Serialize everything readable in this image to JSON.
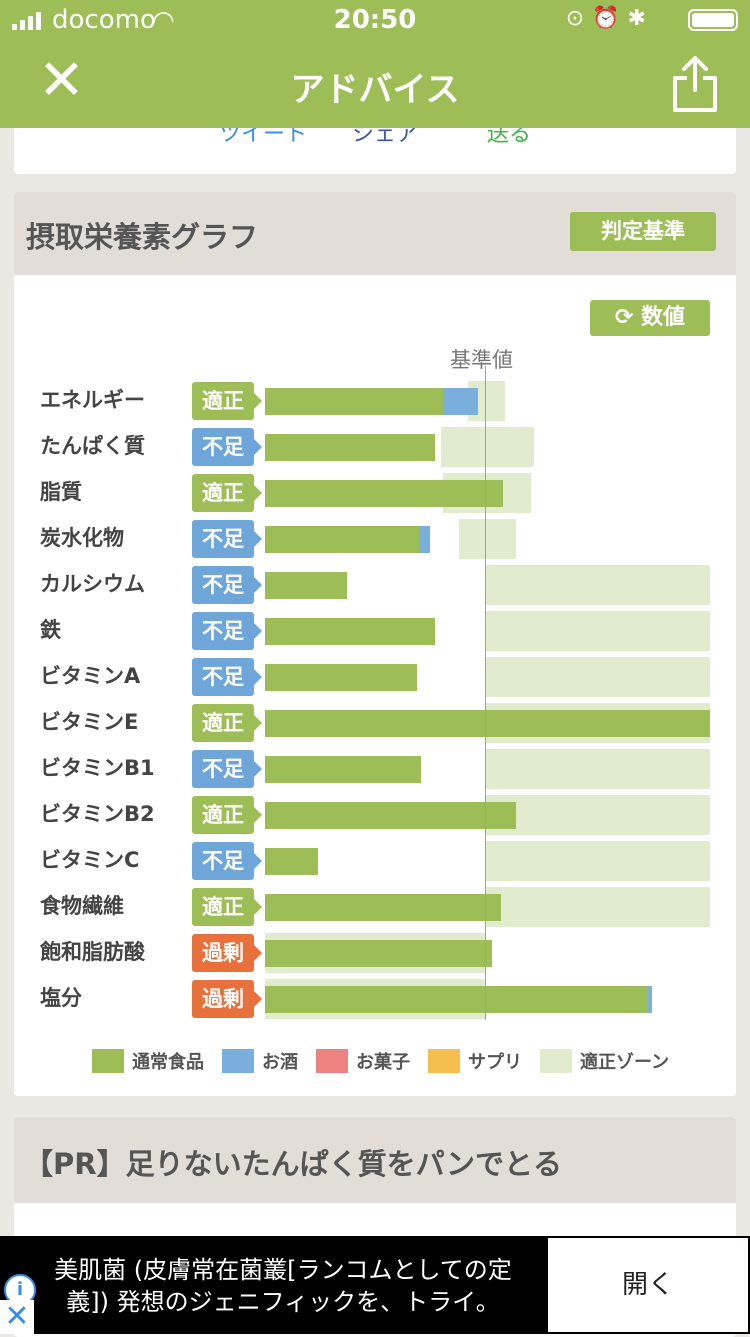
{
  "status": {
    "carrier": "docomo",
    "time": "20:50"
  },
  "nav": {
    "title": "アドバイス"
  },
  "prev_card": {
    "links": [
      "ツイート",
      "シェア",
      "送る"
    ]
  },
  "graph": {
    "title": "摂取栄養素グラフ",
    "criteria_button": "判定基準",
    "value_button": "数値",
    "reference_label": "基準値"
  },
  "colors": {
    "header_green": "#9dbd57",
    "normal_food": "#9dbd57",
    "alcohol": "#7aaedc",
    "sweets": "#ee8280",
    "supplement": "#f4bf4f",
    "zone": "#e1ebcd",
    "status_adequate": "#9dbd57",
    "status_deficient": "#6ea6d9",
    "status_excess": "#e8703a"
  },
  "chart_data": {
    "type": "bar",
    "title": "摂取栄養素グラフ",
    "reference_label": "基準値",
    "categories": [
      "エネルギー",
      "たんぱく質",
      "脂質",
      "炭水化物",
      "カルシウム",
      "鉄",
      "ビタミンA",
      "ビタミンE",
      "ビタミンB1",
      "ビタミンB2",
      "ビタミンC",
      "食物繊維",
      "飽和脂肪酸",
      "塩分"
    ],
    "status": [
      "適正",
      "不足",
      "適正",
      "不足",
      "不足",
      "不足",
      "不足",
      "適正",
      "不足",
      "適正",
      "不足",
      "適正",
      "過剰",
      "過剰"
    ],
    "series": [
      {
        "name": "通常食品",
        "values": [
          0.81,
          0.77,
          1.08,
          0.7,
          0.37,
          0.77,
          0.69,
          2.02,
          0.71,
          1.14,
          0.24,
          1.07,
          1.03,
          1.74
        ]
      },
      {
        "name": "お酒",
        "values": [
          0.16,
          0,
          0,
          0.05,
          0,
          0,
          0,
          0,
          0,
          0,
          0,
          0,
          0,
          0.02
        ]
      },
      {
        "name": "お菓子",
        "values": [
          0,
          0,
          0,
          0,
          0,
          0,
          0,
          0,
          0,
          0,
          0,
          0,
          0,
          0
        ]
      },
      {
        "name": "サプリ",
        "values": [
          0,
          0,
          0,
          0,
          0,
          0,
          0,
          0,
          0,
          0,
          0,
          0,
          0,
          0
        ]
      }
    ],
    "zone_name": "適正ゾーン",
    "adequate_zone": [
      [
        0.92,
        1.09
      ],
      [
        0.8,
        1.22
      ],
      [
        0.81,
        1.21
      ],
      [
        0.88,
        1.14
      ],
      [
        1.0,
        2.02
      ],
      [
        1.0,
        2.02
      ],
      [
        1.0,
        2.02
      ],
      [
        1.0,
        2.02
      ],
      [
        1.0,
        2.02
      ],
      [
        1.0,
        2.02
      ],
      [
        1.0,
        2.02
      ],
      [
        1.0,
        2.02
      ],
      [
        0,
        1.0
      ],
      [
        0,
        1.0
      ]
    ],
    "xlim": [
      0,
      2.02
    ]
  },
  "legend": [
    {
      "label": "通常食品",
      "color": "#9dbd57"
    },
    {
      "label": "お酒",
      "color": "#7aaedc"
    },
    {
      "label": "お菓子",
      "color": "#ee8280"
    },
    {
      "label": "サプリ",
      "color": "#f4bf4f"
    },
    {
      "label": "適正ゾーン",
      "color": "#e1ebcd"
    }
  ],
  "pr_card": {
    "title": "【PR】足りないたんぱく質をパンでとる"
  },
  "ad": {
    "text": "美肌菌 (皮膚常在菌叢[ランコムとしての定義]) 発想のジェニフィックを、トライ。",
    "open_label": "開く"
  }
}
